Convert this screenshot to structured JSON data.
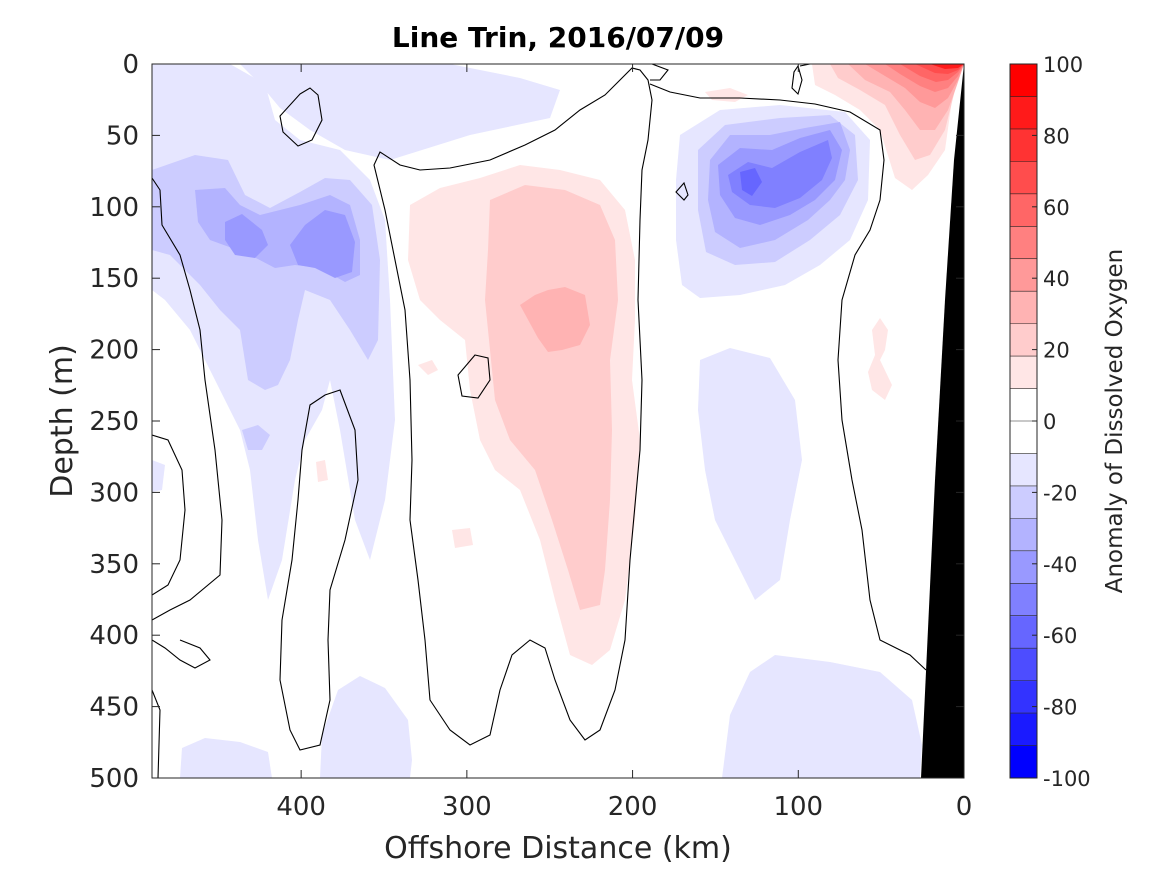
{
  "chart_data": {
    "type": "heatmap",
    "title": "Line Trin, 2016/07/09",
    "xlabel": "Offshore Distance (km)",
    "ylabel": "Depth (m)",
    "colorbar_label": "Anomaly of Dissolved Oxygen",
    "xlim": [
      490,
      0
    ],
    "ylim": [
      500,
      0
    ],
    "x_axis_direction": "reversed",
    "y_axis_direction": "reversed",
    "xticks": [
      400,
      300,
      200,
      100,
      0
    ],
    "xtick_labels": [
      "400",
      "300",
      "200",
      "100",
      "0"
    ],
    "yticks": [
      0,
      50,
      100,
      150,
      200,
      250,
      300,
      350,
      400,
      450,
      500
    ],
    "ytick_labels": [
      "0",
      "50",
      "100",
      "150",
      "200",
      "250",
      "300",
      "350",
      "400",
      "450",
      "500"
    ],
    "colorbar": {
      "range": [
        -100,
        100
      ],
      "ticks": [
        100,
        80,
        60,
        40,
        20,
        0,
        -20,
        -40,
        -60,
        -80,
        -100
      ],
      "tick_labels": [
        "100",
        "80",
        "60",
        "40",
        "20",
        "0",
        "-20",
        "-40",
        "-60",
        "-80",
        "-100"
      ],
      "levels": [
        -100,
        -90,
        -80,
        -70,
        -60,
        -50,
        -40,
        -30,
        -20,
        -10,
        10,
        20,
        30,
        40,
        50,
        60,
        70,
        80,
        90,
        100
      ],
      "colors_low_to_high": [
        "#0000ff",
        "#1a1aff",
        "#3333ff",
        "#4d4dff",
        "#6666ff",
        "#8080ff",
        "#9999ff",
        "#b3b3ff",
        "#ccccff",
        "#e6e6ff",
        "#ffffff",
        "#ffffff",
        "#ffe6e6",
        "#ffcccc",
        "#ffb3b3",
        "#ff9999",
        "#ff8080",
        "#ff6666",
        "#ff4d4d",
        "#ff3333",
        "#ff1a1a",
        "#ff0000"
      ]
    },
    "zero_contour_color": "#000000",
    "bathymetry_color": "#000000",
    "grid": false,
    "features": [
      {
        "kind": "anomaly",
        "sign": "negative",
        "center_km": 420,
        "center_depth_m": 130,
        "peak_value": -40
      },
      {
        "kind": "anomaly",
        "sign": "negative",
        "center_km": 380,
        "center_depth_m": 125,
        "peak_value": -40
      },
      {
        "kind": "anomaly",
        "sign": "positive",
        "center_km": 240,
        "center_depth_m": 180,
        "peak_value": 30
      },
      {
        "kind": "anomaly",
        "sign": "negative",
        "center_km": 110,
        "center_depth_m": 90,
        "peak_value": -60
      },
      {
        "kind": "anomaly",
        "sign": "positive",
        "center_km": 10,
        "center_depth_m": 5,
        "peak_value": 100
      },
      {
        "kind": "anomaly",
        "sign": "negative",
        "center_km": 115,
        "center_depth_m": 300,
        "peak_value": -20
      },
      {
        "kind": "anomaly",
        "sign": "negative",
        "center_km": 60,
        "center_depth_m": 470,
        "peak_value": -20
      }
    ]
  }
}
